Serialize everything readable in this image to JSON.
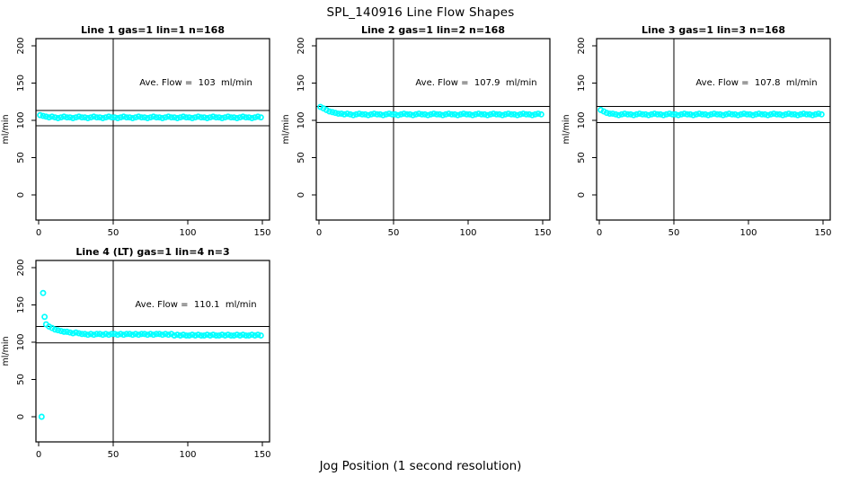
{
  "figure": {
    "title": "SPL_140916  Line Flow Shapes",
    "xlabel": "Jog Position (1 second resolution)"
  },
  "colors": {
    "points": "#00ffff",
    "axis": "#000000",
    "background": "#ffffff"
  },
  "chart_data": {
    "type": "scatter",
    "layout": "4 panels (3 top row, 1 bottom-left), shared axis style",
    "xlim": [
      0,
      150
    ],
    "ylim": [
      0,
      200
    ],
    "grid": false,
    "panels": [
      {
        "title": "Line 1 gas=1 lin=1 n=168",
        "annotation": "Ave. Flow =  103  ml/min",
        "ave_flow": 103,
        "ylabel": "ml/min",
        "x_ticks": [
          0,
          50,
          100,
          150
        ],
        "y_ticks": [
          0,
          50,
          100,
          150,
          200
        ],
        "vline_x": 50,
        "limit_lines": [
          113.3,
          92.7
        ],
        "series": {
          "x0": 1,
          "dx": 2,
          "y": [
            107,
            106,
            105,
            104,
            105,
            104,
            103,
            104,
            105,
            104,
            104,
            103,
            104,
            105,
            104,
            104,
            103,
            104,
            105,
            104,
            104,
            103,
            104,
            105,
            104,
            104,
            103,
            104,
            105,
            104,
            104,
            103,
            104,
            105,
            104,
            104,
            103,
            104,
            105,
            104,
            104,
            103,
            104,
            105,
            104,
            104,
            103,
            104,
            105,
            104,
            104,
            103,
            104,
            105,
            104,
            104,
            103,
            104,
            105,
            104,
            104,
            103,
            104,
            105,
            104,
            104,
            103,
            104,
            105,
            104,
            104,
            103,
            104,
            105,
            104
          ]
        },
        "outliers": []
      },
      {
        "title": "Line 2 gas=1 lin=2 n=168",
        "annotation": "Ave. Flow =  107.9  ml/min",
        "ave_flow": 107.9,
        "ylabel": "ml/min",
        "x_ticks": [
          0,
          50,
          100,
          150
        ],
        "y_ticks": [
          0,
          50,
          100,
          150,
          200
        ],
        "vline_x": 50,
        "limit_lines": [
          118.7,
          97.1
        ],
        "series": {
          "x0": 1,
          "dx": 2,
          "y": [
            118,
            116,
            114,
            112,
            111,
            110,
            109,
            109,
            108,
            109,
            108,
            107,
            108,
            109,
            108,
            108,
            107,
            108,
            109,
            108,
            108,
            107,
            108,
            109,
            108,
            108,
            107,
            108,
            109,
            108,
            108,
            107,
            108,
            109,
            108,
            108,
            107,
            108,
            109,
            108,
            108,
            107,
            108,
            109,
            108,
            108,
            107,
            108,
            109,
            108,
            108,
            107,
            108,
            109,
            108,
            108,
            107,
            108,
            109,
            108,
            108,
            107,
            108,
            109,
            108,
            108,
            107,
            108,
            109,
            108,
            108,
            107,
            108,
            109,
            108
          ]
        },
        "outliers": []
      },
      {
        "title": "Line 3 gas=1 lin=3 n=168",
        "annotation": "Ave. Flow =  107.8  ml/min",
        "ave_flow": 107.8,
        "ylabel": "ml/min",
        "x_ticks": [
          0,
          50,
          100,
          150
        ],
        "y_ticks": [
          0,
          50,
          100,
          150,
          200
        ],
        "vline_x": 50,
        "limit_lines": [
          118.6,
          97.0
        ],
        "series": {
          "x0": 1,
          "dx": 2,
          "y": [
            114,
            112,
            110,
            109,
            109,
            108,
            107,
            108,
            109,
            108,
            108,
            107,
            108,
            109,
            108,
            108,
            107,
            108,
            109,
            108,
            108,
            107,
            108,
            109,
            108,
            108,
            107,
            108,
            109,
            108,
            108,
            107,
            108,
            109,
            108,
            108,
            107,
            108,
            109,
            108,
            108,
            107,
            108,
            109,
            108,
            108,
            107,
            108,
            109,
            108,
            108,
            107,
            108,
            109,
            108,
            108,
            107,
            108,
            109,
            108,
            108,
            107,
            108,
            109,
            108,
            108,
            107,
            108,
            109,
            108,
            108,
            107,
            108,
            109,
            108
          ]
        },
        "outliers": []
      },
      {
        "title": "Line 4 (LT) gas=1 lin=4 n=3",
        "annotation": "Ave. Flow =  110.1  ml/min",
        "ave_flow": 110.1,
        "ylabel": "ml/min",
        "x_ticks": [
          0,
          50,
          100,
          150
        ],
        "y_ticks": [
          0,
          50,
          100,
          150,
          200
        ],
        "vline_x": 50,
        "limit_lines": [
          121.1,
          99.1
        ],
        "series": {
          "x0": 5,
          "dx": 2,
          "y": [
            124,
            121,
            119,
            117,
            116,
            115,
            114,
            114,
            113,
            112,
            113,
            112,
            111,
            111,
            110,
            111,
            110,
            111,
            111,
            110,
            111,
            110,
            111,
            111,
            110,
            111,
            110,
            111,
            111,
            110,
            111,
            110,
            111,
            111,
            110,
            111,
            110,
            111,
            111,
            110,
            111,
            110,
            111,
            109,
            110,
            109,
            110,
            109,
            109,
            110,
            109,
            110,
            109,
            109,
            110,
            109,
            110,
            109,
            109,
            110,
            109,
            110,
            109,
            109,
            110,
            109,
            110,
            109,
            109,
            110,
            109,
            110,
            109
          ]
        },
        "outliers": [
          [
            3,
            166
          ],
          [
            4,
            134
          ],
          [
            2,
            0
          ]
        ]
      }
    ]
  }
}
